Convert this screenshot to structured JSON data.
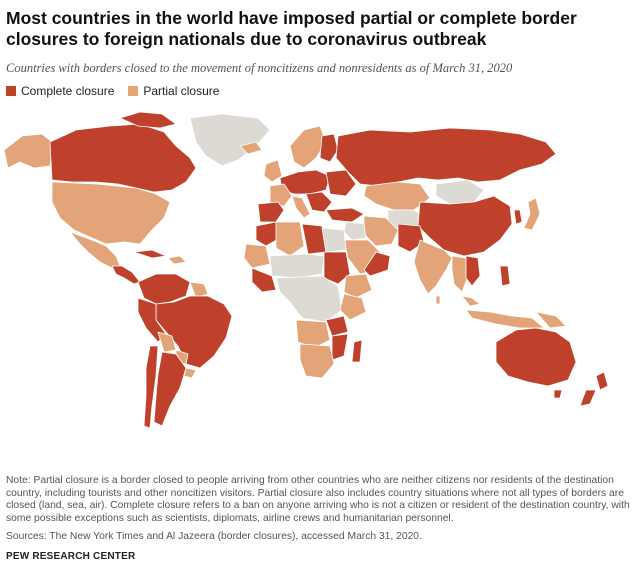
{
  "title": "Most countries in the world have imposed partial or complete border closures to foreign nationals due to coronavirus outbreak",
  "subtitle": "Countries with borders closed to the movement of noncitizens and nonresidents as of March 31, 2020",
  "legend": {
    "complete": {
      "label": "Complete closure",
      "color": "#c0412b"
    },
    "partial": {
      "label": "Partial closure",
      "color": "#e3a47a"
    }
  },
  "colors": {
    "none": "#dcdad3",
    "border": "#ffffff"
  },
  "note": "Note: Partial closure is a border closed to people arriving from other countries who are neither citizens nor residents of the destination country, including tourists and other noncitizen visitors. Partial closure also includes country situations where not all types of borders are closed (land, sea, air). Complete closure refers to a ban on anyone arriving who is not a citizen or resident of the destination country, with some possible exceptions such as scientists, diplomats, airline crews and humanitarian personnel.",
  "source": "Sources: The New York Times and Al Jazeera (border closures), accessed March 31, 2020.",
  "brand": "PEW RESEARCH CENTER"
}
